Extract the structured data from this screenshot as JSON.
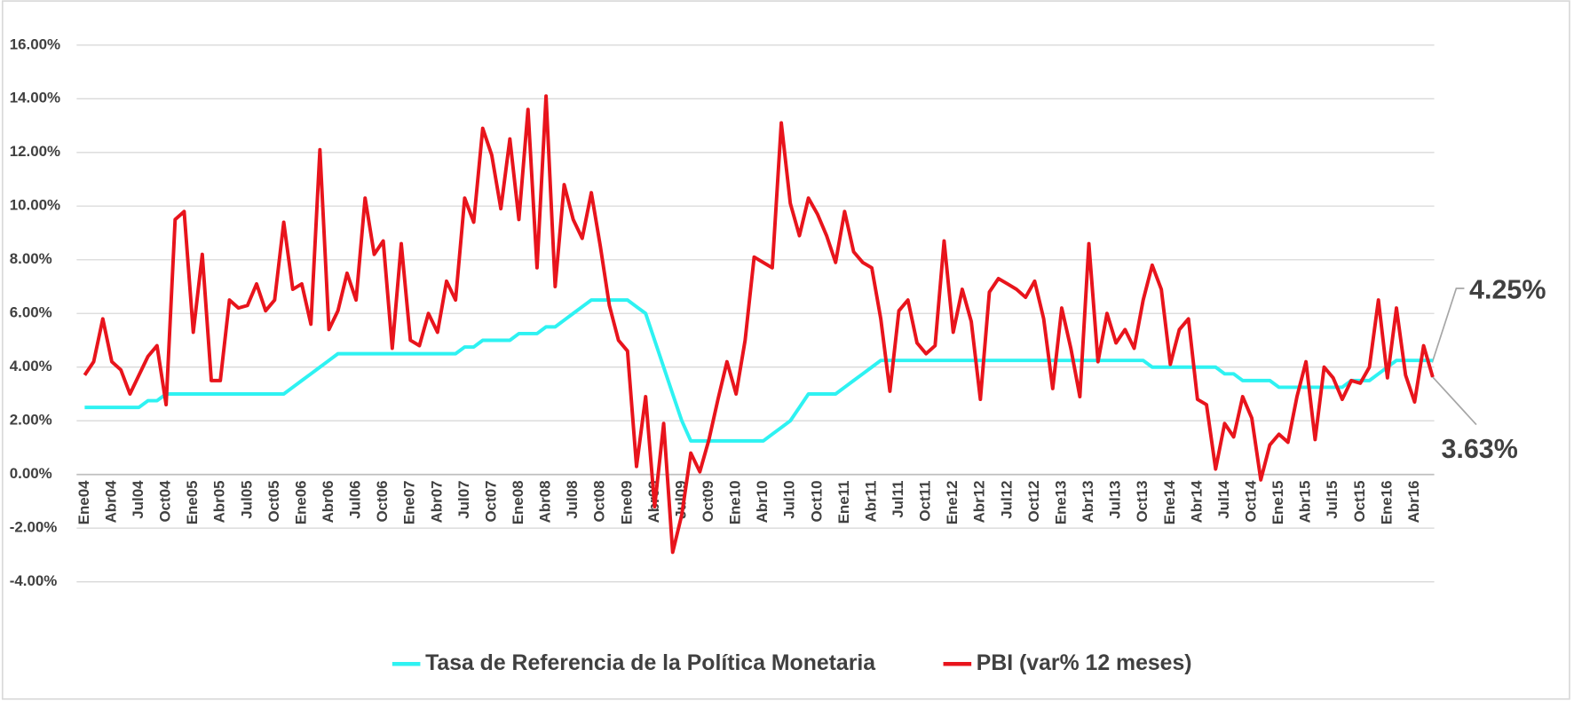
{
  "chart_data": {
    "type": "line",
    "categories": [
      "Ene04",
      null,
      null,
      "Abr04",
      null,
      null,
      "Jul04",
      null,
      null,
      "Oct04",
      null,
      null,
      "Ene05",
      null,
      null,
      "Abr05",
      null,
      null,
      "Jul05",
      null,
      null,
      "Oct05",
      null,
      null,
      "Ene06",
      null,
      null,
      "Abr06",
      null,
      null,
      "Jul06",
      null,
      null,
      "Oct06",
      null,
      null,
      "Ene07",
      null,
      null,
      "Abr07",
      null,
      null,
      "Jul07",
      null,
      null,
      "Oct07",
      null,
      null,
      "Ene08",
      null,
      null,
      "Abr08",
      null,
      null,
      "Jul08",
      null,
      null,
      "Oct08",
      null,
      null,
      "Ene09",
      null,
      null,
      "Abr09",
      null,
      null,
      "Jul09",
      null,
      null,
      "Oct09",
      null,
      null,
      "Ene10",
      null,
      null,
      "Abr10",
      null,
      null,
      "Jul10",
      null,
      null,
      "Oct10",
      null,
      null,
      "Ene11",
      null,
      null,
      "Abr11",
      null,
      null,
      "Jul11",
      null,
      null,
      "Oct11",
      null,
      null,
      "Ene12",
      null,
      null,
      "Abr12",
      null,
      null,
      "Jul12",
      null,
      null,
      "Oct12",
      null,
      null,
      "Ene13",
      null,
      null,
      "Abr13",
      null,
      null,
      "Jul13",
      null,
      null,
      "Oct13",
      null,
      null,
      "Ene14",
      null,
      null,
      "Abr14",
      null,
      null,
      "Jul14",
      null,
      null,
      "Oct14",
      null,
      null,
      "Ene15",
      null,
      null,
      "Abr15",
      null,
      null,
      "Jul15",
      null,
      null,
      "Oct15",
      null,
      null,
      "Ene16",
      null,
      null,
      "Abr16",
      null,
      null
    ],
    "series": [
      {
        "name": "Tasa de Referencia de la Política Monetaria",
        "color": "#2ef2f2",
        "values": [
          2.5,
          2.5,
          2.5,
          2.5,
          2.5,
          2.5,
          2.5,
          2.75,
          2.75,
          3.0,
          3.0,
          3.0,
          3.0,
          3.0,
          3.0,
          3.0,
          3.0,
          3.0,
          3.0,
          3.0,
          3.0,
          3.0,
          3.0,
          3.25,
          3.5,
          3.75,
          4.0,
          4.25,
          4.5,
          4.5,
          4.5,
          4.5,
          4.5,
          4.5,
          4.5,
          4.5,
          4.5,
          4.5,
          4.5,
          4.5,
          4.5,
          4.5,
          4.75,
          4.75,
          5.0,
          5.0,
          5.0,
          5.0,
          5.25,
          5.25,
          5.25,
          5.5,
          5.5,
          5.75,
          6.0,
          6.25,
          6.5,
          6.5,
          6.5,
          6.5,
          6.5,
          6.25,
          6.0,
          5.0,
          4.0,
          3.0,
          2.0,
          1.25,
          1.25,
          1.25,
          1.25,
          1.25,
          1.25,
          1.25,
          1.25,
          1.25,
          1.5,
          1.75,
          2.0,
          2.5,
          3.0,
          3.0,
          3.0,
          3.0,
          3.25,
          3.5,
          3.75,
          4.0,
          4.25,
          4.25,
          4.25,
          4.25,
          4.25,
          4.25,
          4.25,
          4.25,
          4.25,
          4.25,
          4.25,
          4.25,
          4.25,
          4.25,
          4.25,
          4.25,
          4.25,
          4.25,
          4.25,
          4.25,
          4.25,
          4.25,
          4.25,
          4.25,
          4.25,
          4.25,
          4.25,
          4.25,
          4.25,
          4.25,
          4.0,
          4.0,
          4.0,
          4.0,
          4.0,
          4.0,
          4.0,
          4.0,
          3.75,
          3.75,
          3.5,
          3.5,
          3.5,
          3.5,
          3.25,
          3.25,
          3.25,
          3.25,
          3.25,
          3.25,
          3.25,
          3.25,
          3.5,
          3.5,
          3.5,
          3.75,
          4.0,
          4.25,
          4.25,
          4.25,
          4.25,
          4.25
        ]
      },
      {
        "name": "PBI (var% 12 meses)",
        "color": "#e8141c",
        "values": [
          3.7,
          4.2,
          5.8,
          4.2,
          3.9,
          3.0,
          3.7,
          4.4,
          4.8,
          2.6,
          9.5,
          9.8,
          5.3,
          8.2,
          3.5,
          3.5,
          6.5,
          6.2,
          6.3,
          7.1,
          6.1,
          6.5,
          9.4,
          6.9,
          7.1,
          5.6,
          12.1,
          5.4,
          6.1,
          7.5,
          6.5,
          10.3,
          8.2,
          8.7,
          4.7,
          8.6,
          5.0,
          4.8,
          6.0,
          5.3,
          7.2,
          6.5,
          10.3,
          9.4,
          12.9,
          11.9,
          9.9,
          12.5,
          9.5,
          13.6,
          7.7,
          14.1,
          7.0,
          10.8,
          9.5,
          8.8,
          10.5,
          8.5,
          6.3,
          5.0,
          4.6,
          0.3,
          2.9,
          -1.2,
          1.9,
          -2.9,
          -1.5,
          0.8,
          0.1,
          1.3,
          2.8,
          4.2,
          3.0,
          5.0,
          8.1,
          7.9,
          7.7,
          13.1,
          10.1,
          8.9,
          10.3,
          9.7,
          8.9,
          7.9,
          9.8,
          8.3,
          7.9,
          7.7,
          5.8,
          3.1,
          6.1,
          6.5,
          4.9,
          4.5,
          4.8,
          8.7,
          5.3,
          6.9,
          5.7,
          2.8,
          6.8,
          7.3,
          7.1,
          6.9,
          6.6,
          7.2,
          5.8,
          3.2,
          6.2,
          4.7,
          2.9,
          8.6,
          4.2,
          6.0,
          4.9,
          5.4,
          4.7,
          6.5,
          7.8,
          6.9,
          4.1,
          5.4,
          5.8,
          2.8,
          2.6,
          0.2,
          1.9,
          1.4,
          2.9,
          2.1,
          -0.2,
          1.1,
          1.5,
          1.2,
          2.9,
          4.2,
          1.3,
          4.0,
          3.6,
          2.8,
          3.5,
          3.4,
          4.0,
          6.5,
          3.6,
          6.2,
          3.7,
          2.7,
          4.8,
          3.63
        ]
      }
    ],
    "ylim": [
      -4,
      16
    ],
    "yticks": [
      {
        "value": -4,
        "label": "-4.00%"
      },
      {
        "value": -2,
        "label": "-2.00%"
      },
      {
        "value": 0,
        "label": "0.00%"
      },
      {
        "value": 2,
        "label": "2.00%"
      },
      {
        "value": 4,
        "label": "4.00%"
      },
      {
        "value": 6,
        "label": "6.00%"
      },
      {
        "value": 8,
        "label": "8.00%"
      },
      {
        "value": 10,
        "label": "10.00%"
      },
      {
        "value": 12,
        "label": "12.00%"
      },
      {
        "value": 14,
        "label": "14.00%"
      },
      {
        "value": 16,
        "label": "16.00%"
      }
    ],
    "grid": true,
    "legend": "bottom",
    "annotations": [
      {
        "text": "4.25%"
      },
      {
        "text": "3.63%"
      }
    ]
  }
}
